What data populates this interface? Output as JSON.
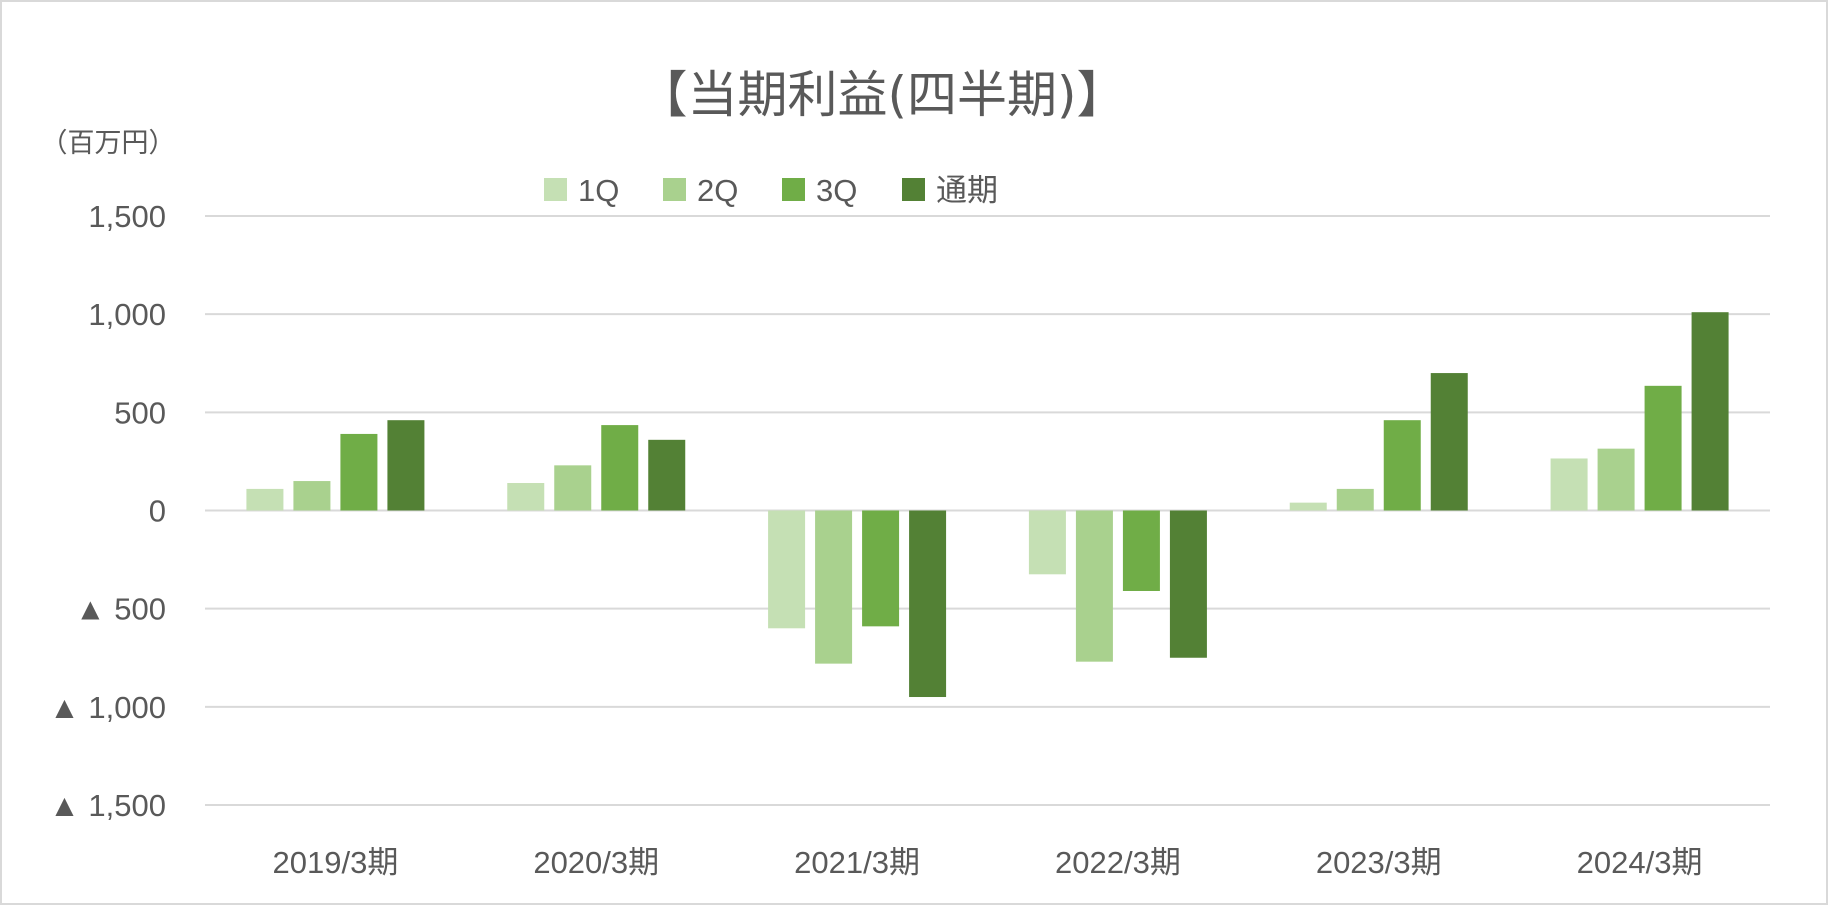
{
  "chart_data": {
    "type": "bar",
    "title": "【当期利益(四半期)】",
    "ylabel": "（百万円）",
    "xlabel": "",
    "categories": [
      "2019/3期",
      "2020/3期",
      "2021/3期",
      "2022/3期",
      "2023/3期",
      "2024/3期"
    ],
    "series": [
      {
        "name": "1Q",
        "color": "#c5e0b4",
        "values": [
          110,
          140,
          -600,
          -325,
          40,
          265
        ]
      },
      {
        "name": "2Q",
        "color": "#a9d18e",
        "values": [
          150,
          230,
          -780,
          -770,
          110,
          315
        ]
      },
      {
        "name": "3Q",
        "color": "#70ad47",
        "values": [
          390,
          435,
          -590,
          -410,
          460,
          635
        ]
      },
      {
        "name": "通期",
        "color": "#538135",
        "values": [
          460,
          360,
          -950,
          -750,
          700,
          1010
        ]
      }
    ],
    "ylim": [
      -1500,
      1500
    ],
    "yticks": [
      1500,
      1000,
      500,
      0,
      -500,
      -1000,
      -1500
    ],
    "ytick_labels": [
      "1,500",
      "1,000",
      "500",
      "0",
      "▲ 500",
      "▲ 1,000",
      "▲ 1,500"
    ],
    "grid": true,
    "legend_position": "top-center"
  }
}
